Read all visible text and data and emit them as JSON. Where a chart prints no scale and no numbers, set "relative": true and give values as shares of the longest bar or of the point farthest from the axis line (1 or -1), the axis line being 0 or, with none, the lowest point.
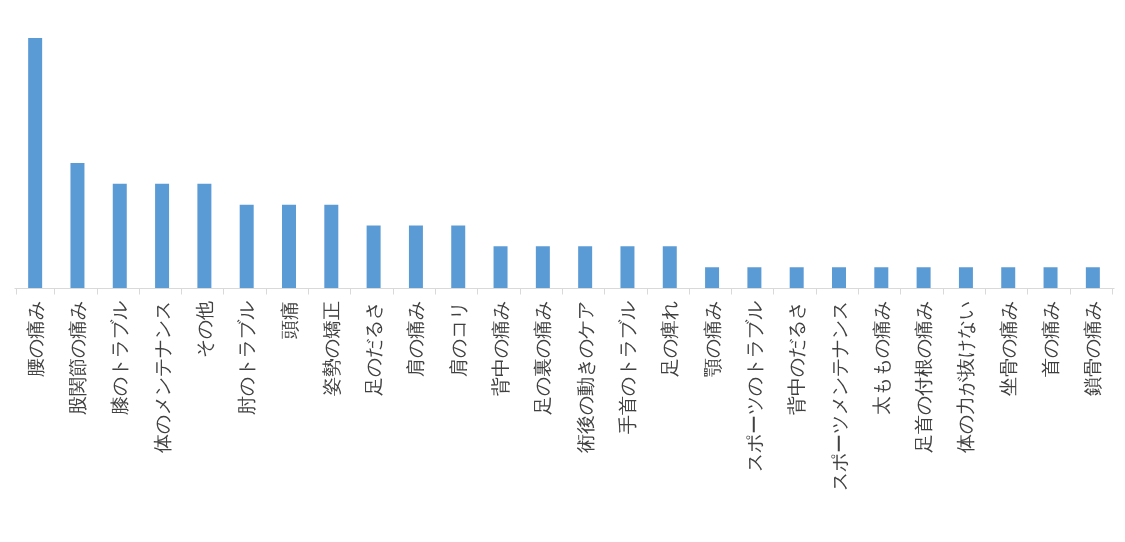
{
  "chart_data": {
    "type": "bar",
    "relative": true,
    "color": "#5b9bd5",
    "grid": false,
    "categories": [
      "腰の痛み",
      "股関節の痛み",
      "膝のトラブル",
      "体のメンテナンス",
      "その他",
      "肘のトラブル",
      "頭痛",
      "姿勢の矯正",
      "足のだるさ",
      "肩の痛み",
      "肩のコリ",
      "背中の痛み",
      "足の裏の痛み",
      "術後の動きのケア",
      "手首のトラブル",
      "足の痺れ",
      "顎の痛み",
      "スポーツのトラブル",
      "背中のだるさ",
      "スポーツメンテナンス",
      "太ももの痛み",
      "足首の付根の痛み",
      "体の力が抜けない",
      "坐骨の痛み",
      "首の痛み",
      "鎖骨の痛み"
    ],
    "values": [
      1,
      0.5,
      0.417,
      0.417,
      0.417,
      0.333,
      0.333,
      0.333,
      0.25,
      0.25,
      0.25,
      0.167,
      0.167,
      0.167,
      0.167,
      0.167,
      0.083,
      0.083,
      0.083,
      0.083,
      0.083,
      0.083,
      0.083,
      0.083,
      0.083,
      0.083
    ]
  }
}
